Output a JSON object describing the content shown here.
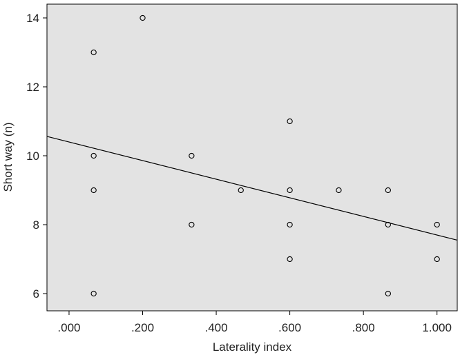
{
  "chart_data": {
    "type": "scatter",
    "title": "",
    "xlabel": "Laterality index",
    "ylabel": "Short way (n)",
    "xlim": [
      -0.06,
      1.055
    ],
    "ylim": [
      5.5,
      14.4
    ],
    "x_ticks": [
      0.0,
      0.2,
      0.4,
      0.6,
      0.8,
      1.0
    ],
    "x_tick_labels": [
      ".000",
      ".200",
      ".400",
      ".600",
      ".800",
      "1.000"
    ],
    "y_ticks": [
      6,
      8,
      10,
      12,
      14
    ],
    "y_tick_labels": [
      "6",
      "8",
      "10",
      "12",
      "14"
    ],
    "grid": false,
    "background": "#e3e3e3",
    "marker_color": "#000000",
    "points": [
      {
        "x": 0.067,
        "y": 13
      },
      {
        "x": 0.067,
        "y": 10
      },
      {
        "x": 0.067,
        "y": 9
      },
      {
        "x": 0.067,
        "y": 6
      },
      {
        "x": 0.2,
        "y": 14
      },
      {
        "x": 0.333,
        "y": 10
      },
      {
        "x": 0.333,
        "y": 8
      },
      {
        "x": 0.467,
        "y": 9
      },
      {
        "x": 0.6,
        "y": 11
      },
      {
        "x": 0.6,
        "y": 9
      },
      {
        "x": 0.6,
        "y": 8
      },
      {
        "x": 0.6,
        "y": 7
      },
      {
        "x": 0.733,
        "y": 9
      },
      {
        "x": 0.867,
        "y": 9
      },
      {
        "x": 0.867,
        "y": 8
      },
      {
        "x": 0.867,
        "y": 6
      },
      {
        "x": 1.0,
        "y": 8
      },
      {
        "x": 1.0,
        "y": 7
      }
    ],
    "fit_line": {
      "type": "linear",
      "slope": -2.7,
      "intercept": 10.4
    }
  }
}
